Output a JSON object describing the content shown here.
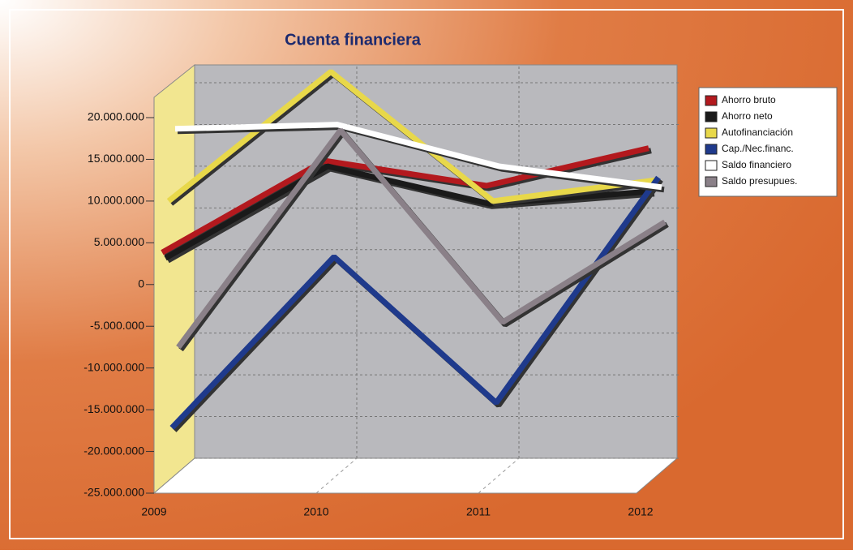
{
  "chart_data": {
    "type": "line",
    "title": "Cuenta financiera",
    "categories": [
      "2009",
      "2010",
      "2011",
      "2012"
    ],
    "series": [
      {
        "name": "Ahorro bruto",
        "color": "#b3191e",
        "values": [
          3000000,
          14000000,
          11000000,
          15500000
        ]
      },
      {
        "name": "Ahorro neto",
        "color": "#1a1a1a",
        "values": [
          2000000,
          13000000,
          8500000,
          10000000
        ]
      },
      {
        "name": "Autofinanciación",
        "color": "#e8d84a",
        "values": [
          8500000,
          24000000,
          8500000,
          11000000
        ]
      },
      {
        "name": "Cap./Nec.financ.",
        "color": "#1f3a8c",
        "values": [
          -19000000,
          1500000,
          -16000000,
          11000000
        ]
      },
      {
        "name": "Saldo financiero",
        "color": "#ffffff",
        "values": [
          16500000,
          17000000,
          12000000,
          9500000
        ]
      },
      {
        "name": "Saldo presupues.",
        "color": "#8a8088",
        "values": [
          -10000000,
          16000000,
          -7000000,
          5000000
        ]
      }
    ],
    "ylim": [
      -25000000,
      20000000
    ],
    "yticks": [
      {
        "value": 20000000,
        "label": "20.000.000"
      },
      {
        "value": 15000000,
        "label": "15.000.000"
      },
      {
        "value": 10000000,
        "label": "10.000.000"
      },
      {
        "value": 5000000,
        "label": "5.000.000"
      },
      0,
      {
        "value": -5000000,
        "label": "-5.000.000"
      },
      {
        "value": -10000000,
        "label": "-10.000.000"
      },
      {
        "value": -15000000,
        "label": "-15.000.000"
      },
      {
        "value": -20000000,
        "label": "-20.000.000"
      },
      {
        "value": -25000000,
        "label": "-25.000.000"
      }
    ],
    "grid": true
  }
}
